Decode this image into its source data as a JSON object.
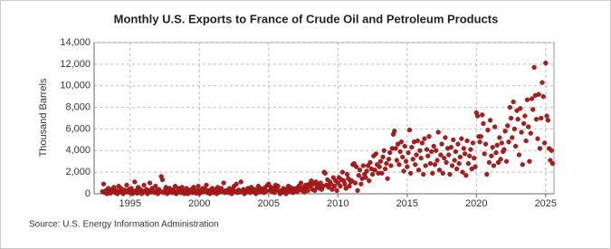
{
  "chart_data": {
    "type": "scatter",
    "title": "Monthly U.S. Exports to France of Crude Oil and Petroleum Products",
    "y_label": "Thousand Barrels",
    "source": "Source: U.S. Energy Information Administration",
    "color": "#b01c1c",
    "grid": true,
    "xlim": [
      1992.4,
      2025.6
    ],
    "xticks": [
      1995,
      2000,
      2005,
      2010,
      2015,
      2020,
      2025
    ],
    "ylim": [
      0,
      14000
    ],
    "yticks": [
      0,
      {
        "value": 2000,
        "label": "2,000"
      },
      {
        "value": 4000,
        "label": "4,000"
      },
      {
        "value": 6000,
        "label": "6,000"
      },
      {
        "value": 8000,
        "label": "8,000"
      },
      {
        "value": 10000,
        "label": "10,000"
      },
      {
        "value": 12000,
        "label": "12,000"
      },
      {
        "value": 14000,
        "label": "14,000"
      }
    ],
    "x": [
      1993,
      1993.08,
      1993.17,
      1993.25,
      1993.33,
      1993.42,
      1993.5,
      1993.58,
      1993.67,
      1993.75,
      1993.83,
      1993.92,
      1994,
      1994.08,
      1994.17,
      1994.25,
      1994.33,
      1994.42,
      1994.5,
      1994.58,
      1994.67,
      1994.75,
      1994.83,
      1994.92,
      1995,
      1995.08,
      1995.17,
      1995.25,
      1995.33,
      1995.42,
      1995.5,
      1995.58,
      1995.67,
      1995.75,
      1995.83,
      1995.92,
      1996,
      1996.08,
      1996.17,
      1996.25,
      1996.33,
      1996.42,
      1996.5,
      1996.58,
      1996.67,
      1996.75,
      1996.83,
      1996.92,
      1997,
      1997.08,
      1997.17,
      1997.25,
      1997.33,
      1997.42,
      1997.5,
      1997.58,
      1997.67,
      1997.75,
      1997.83,
      1997.92,
      1998,
      1998.08,
      1998.17,
      1998.25,
      1998.33,
      1998.42,
      1998.5,
      1998.58,
      1998.67,
      1998.75,
      1998.83,
      1998.92,
      1999,
      1999.08,
      1999.17,
      1999.25,
      1999.33,
      1999.42,
      1999.5,
      1999.58,
      1999.67,
      1999.75,
      1999.83,
      1999.92,
      2000,
      2000.08,
      2000.17,
      2000.25,
      2000.33,
      2000.42,
      2000.5,
      2000.58,
      2000.67,
      2000.75,
      2000.83,
      2000.92,
      2001,
      2001.08,
      2001.17,
      2001.25,
      2001.33,
      2001.42,
      2001.5,
      2001.58,
      2001.67,
      2001.75,
      2001.83,
      2001.92,
      2002,
      2002.08,
      2002.17,
      2002.25,
      2002.33,
      2002.42,
      2002.5,
      2002.58,
      2002.67,
      2002.75,
      2002.83,
      2002.92,
      2003,
      2003.08,
      2003.17,
      2003.25,
      2003.33,
      2003.42,
      2003.5,
      2003.58,
      2003.67,
      2003.75,
      2003.83,
      2003.92,
      2004,
      2004.08,
      2004.17,
      2004.25,
      2004.33,
      2004.42,
      2004.5,
      2004.58,
      2004.67,
      2004.75,
      2004.83,
      2004.92,
      2005,
      2005.08,
      2005.17,
      2005.25,
      2005.33,
      2005.42,
      2005.5,
      2005.58,
      2005.67,
      2005.75,
      2005.83,
      2005.92,
      2006,
      2006.08,
      2006.17,
      2006.25,
      2006.33,
      2006.42,
      2006.5,
      2006.58,
      2006.67,
      2006.75,
      2006.83,
      2006.92,
      2007,
      2007.08,
      2007.17,
      2007.25,
      2007.33,
      2007.42,
      2007.5,
      2007.58,
      2007.67,
      2007.75,
      2007.83,
      2007.92,
      2008,
      2008.08,
      2008.17,
      2008.25,
      2008.33,
      2008.42,
      2008.5,
      2008.58,
      2008.67,
      2008.75,
      2008.83,
      2008.92,
      2009,
      2009.08,
      2009.17,
      2009.25,
      2009.33,
      2009.42,
      2009.5,
      2009.58,
      2009.67,
      2009.75,
      2009.83,
      2009.92,
      2010,
      2010.08,
      2010.17,
      2010.25,
      2010.33,
      2010.42,
      2010.5,
      2010.58,
      2010.67,
      2010.75,
      2010.83,
      2010.92,
      2011,
      2011.08,
      2011.17,
      2011.25,
      2011.33,
      2011.42,
      2011.5,
      2011.58,
      2011.67,
      2011.75,
      2011.83,
      2011.92,
      2012,
      2012.08,
      2012.17,
      2012.25,
      2012.33,
      2012.42,
      2012.5,
      2012.58,
      2012.67,
      2012.75,
      2012.83,
      2012.92,
      2013,
      2013.08,
      2013.17,
      2013.25,
      2013.33,
      2013.42,
      2013.5,
      2013.58,
      2013.67,
      2013.75,
      2013.83,
      2013.92,
      2014,
      2014.08,
      2014.17,
      2014.25,
      2014.33,
      2014.42,
      2014.5,
      2014.58,
      2014.67,
      2014.75,
      2014.83,
      2014.92,
      2015,
      2015.08,
      2015.17,
      2015.25,
      2015.33,
      2015.42,
      2015.5,
      2015.58,
      2015.67,
      2015.75,
      2015.83,
      2015.92,
      2016,
      2016.08,
      2016.17,
      2016.25,
      2016.33,
      2016.42,
      2016.5,
      2016.58,
      2016.67,
      2016.75,
      2016.83,
      2016.92,
      2017,
      2017.08,
      2017.17,
      2017.25,
      2017.33,
      2017.42,
      2017.5,
      2017.58,
      2017.67,
      2017.75,
      2017.83,
      2017.92,
      2018,
      2018.08,
      2018.17,
      2018.25,
      2018.33,
      2018.42,
      2018.5,
      2018.58,
      2018.67,
      2018.75,
      2018.83,
      2018.92,
      2019,
      2019.08,
      2019.17,
      2019.25,
      2019.33,
      2019.42,
      2019.5,
      2019.58,
      2019.67,
      2019.75,
      2019.83,
      2019.92,
      2020,
      2020.08,
      2020.17,
      2020.25,
      2020.33,
      2020.42,
      2020.5,
      2020.58,
      2020.67,
      2020.75,
      2020.83,
      2020.92,
      2021,
      2021.08,
      2021.17,
      2021.25,
      2021.33,
      2021.42,
      2021.5,
      2021.58,
      2021.67,
      2021.75,
      2021.83,
      2021.92,
      2022,
      2022.08,
      2022.17,
      2022.25,
      2022.33,
      2022.42,
      2022.5,
      2022.58,
      2022.67,
      2022.75,
      2022.83,
      2022.92,
      2023,
      2023.08,
      2023.17,
      2023.25,
      2023.33,
      2023.42,
      2023.5,
      2023.58,
      2023.67,
      2023.75,
      2023.83,
      2023.92,
      2024,
      2024.08,
      2024.17,
      2024.25,
      2024.33,
      2024.42,
      2024.5,
      2024.58,
      2024.67,
      2024.75,
      2024.83,
      2024.92,
      2025,
      2025.08,
      2025.17,
      2025.25,
      2025.33,
      2025.42,
      2025.5
    ],
    "values": [
      200,
      900,
      100,
      300,
      0,
      500,
      150,
      50,
      400,
      200,
      600,
      100,
      300,
      0,
      700,
      200,
      500,
      100,
      0,
      350,
      250,
      800,
      150,
      400,
      100,
      500,
      0,
      200,
      1100,
      300,
      50,
      600,
      150,
      400,
      0,
      250,
      800,
      200,
      400,
      0,
      300,
      1000,
      150,
      500,
      250,
      100,
      700,
      300,
      0,
      400,
      200,
      1600,
      1300,
      100,
      300,
      600,
      0,
      250,
      500,
      150,
      400,
      100,
      300,
      700,
      0,
      200,
      500,
      350,
      100,
      600,
      250,
      0,
      200,
      500,
      0,
      300,
      150,
      400,
      100,
      600,
      250,
      50,
      300,
      700,
      0,
      300,
      150,
      500,
      200,
      400,
      800,
      100,
      300,
      0,
      250,
      500,
      100,
      400,
      200,
      0,
      600,
      300,
      150,
      500,
      250,
      1000,
      100,
      300,
      300,
      100,
      500,
      250,
      0,
      400,
      700,
      200,
      900,
      100,
      350,
      150,
      1100,
      200,
      400,
      0,
      300,
      150,
      500,
      250,
      100,
      600,
      300,
      200,
      400,
      0,
      300,
      700,
      150,
      500,
      200,
      350,
      100,
      600,
      250,
      800,
      900,
      300,
      600,
      200,
      500,
      100,
      800,
      400,
      700,
      250,
      0,
      300,
      150,
      500,
      300,
      0,
      400,
      700,
      200,
      600,
      350,
      100,
      450,
      250,
      500,
      200,
      700,
      400,
      1000,
      300,
      600,
      150,
      800,
      450,
      300,
      900,
      700,
      1200,
      400,
      900,
      300,
      1100,
      600,
      800,
      500,
      1000,
      400,
      700,
      2000,
      1900,
      800,
      1300,
      600,
      1100,
      900,
      400,
      1500,
      700,
      1200,
      300,
      1000,
      1500,
      700,
      1300,
      2000,
      1200,
      900,
      500,
      1800,
      1400,
      700,
      1100,
      1200,
      2700,
      2800,
      1000,
      2500,
      300,
      1700,
      2200,
      900,
      1400,
      2600,
      1800,
      1500,
      2100,
      2600,
      1200,
      2900,
      2300,
      1800,
      3500,
      2200,
      3700,
      2700,
      1900,
      2500,
      3000,
      1900,
      3400,
      4000,
      2300,
      2800,
      1400,
      3200,
      3800,
      2600,
      4200,
      5500,
      5800,
      4200,
      3100,
      4600,
      2700,
      3900,
      4800,
      3400,
      2100,
      4400,
      3000,
      2500,
      3800,
      5900,
      1900,
      4300,
      3200,
      4800,
      2700,
      3600,
      4900,
      2200,
      4000,
      3300,
      4700,
      1800,
      5100,
      2600,
      4100,
      3500,
      5300,
      2800,
      3900,
      1900,
      4400,
      2700,
      4000,
      3100,
      5700,
      2200,
      3600,
      4600,
      1900,
      3300,
      5200,
      2900,
      4200,
      3600,
      1800,
      4300,
      2600,
      5000,
      3100,
      3900,
      2300,
      4600,
      2800,
      3400,
      5100,
      2000,
      4200,
      3700,
      1700,
      4900,
      2800,
      3500,
      4100,
      2300,
      4700,
      3300,
      2500,
      7500,
      7200,
      5300,
      4800,
      5300,
      7300,
      6500,
      3700,
      4600,
      1800,
      5900,
      2900,
      6800,
      3500,
      4300,
      2600,
      6200,
      3800,
      4500,
      2900,
      5200,
      3200,
      4700,
      3900,
      4100,
      5800,
      3000,
      6300,
      4800,
      8000,
      7000,
      5200,
      8500,
      6000,
      4400,
      7700,
      6900,
      3600,
      7900,
      5700,
      2700,
      6500,
      7200,
      4900,
      8700,
      6200,
      3000,
      5600,
      8800,
      7800,
      11700,
      9100,
      6900,
      5100,
      9200,
      4200,
      7000,
      10300,
      9000,
      4700,
      12100,
      7200,
      6800,
      4200,
      3100,
      4000,
      2800
    ]
  }
}
